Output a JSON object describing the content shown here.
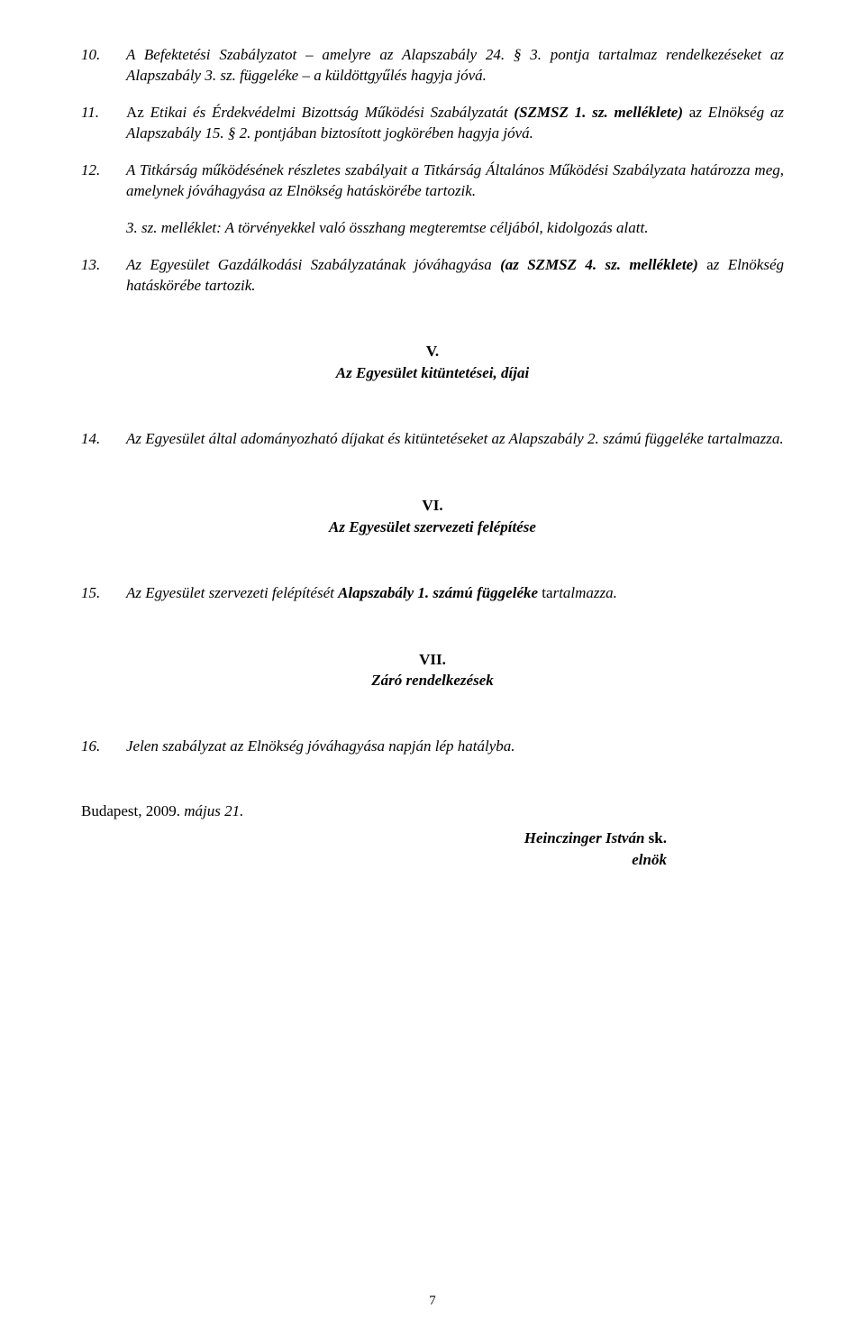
{
  "paragraphs": {
    "p10": {
      "num": "10.",
      "parts": [
        {
          "t": "A ",
          "i": true
        },
        {
          "t": "Befektetési Szabályzatot",
          "i": true
        },
        {
          "t": " – amelyre az Alapszabály 24. § 3. pontja tartalmaz rendelkezéseket az Alapszabály 3. sz. függeléke – a küldöttgyűlés hagyja jóvá.",
          "i": true
        }
      ]
    },
    "p11": {
      "num": "11.",
      "parts": [
        {
          "t": "Az ",
          "i": false
        },
        {
          "t": "Etikai és Érdekvédelmi Bizottság Működési Szabályzatát ",
          "i": true
        },
        {
          "t": "(SZMSZ 1. sz. melléklete) ",
          "b": true,
          "i": true
        },
        {
          "t": "a",
          "i": false
        },
        {
          "t": "z Elnökség az Alapszabály 15. § 2. pontjában biztosított jogkörében hagyja jóvá.",
          "i": true
        }
      ]
    },
    "p12": {
      "num": "12.",
      "parts": [
        {
          "t": "A Titkárság működésének részletes szabályait a Titkárság Általános Működési Szabályzata határozza meg, amelynek jóváhagyása az Elnökség hatáskörébe tartozik.",
          "i": true
        }
      ]
    },
    "p12sub": {
      "parts": [
        {
          "t": "3. sz. melléklet: A törvényekkel való összhang megteremtse céljából, kidolgozás alatt.",
          "i": true
        }
      ]
    },
    "p13": {
      "num": "13.",
      "parts": [
        {
          "t": "Az Egyesület Gazdálkodási Szabályzatának jóváhagyása ",
          "i": true
        },
        {
          "t": "(az SZMSZ 4. sz. melléklete) ",
          "b": true,
          "i": true
        },
        {
          "t": "a",
          "i": false
        },
        {
          "t": "z Elnökség hatáskörébe tartozik.",
          "i": true
        }
      ]
    },
    "p14": {
      "num": "14.",
      "parts": [
        {
          "t": "Az Egyesület által adományozható díjakat és kitüntetéseket az Alapszabály 2. számú függeléke tartalmazza.",
          "i": true
        }
      ]
    },
    "p15": {
      "num": "15.",
      "parts": [
        {
          "t": "Az Egyesület szervezeti felépítését ",
          "i": true
        },
        {
          "t": "Alapszabály 1. számú függeléke",
          "b": true,
          "i": true
        },
        {
          "t": " ta",
          "i": false
        },
        {
          "t": "rtalmazza.",
          "i": true
        }
      ]
    },
    "p16": {
      "num": "16.",
      "parts": [
        {
          "t": "Jelen szabályzat az Elnökség jóváhagyása napján lép hatályba.",
          "i": true
        }
      ]
    }
  },
  "sections": {
    "s5": {
      "num": "V.",
      "title": "Az Egyesület kitüntetései, díjai"
    },
    "s6": {
      "num": "VI.",
      "title": "Az Egyesület szervezeti felépítése"
    },
    "s7": {
      "num": "VII.",
      "title": "Záró rendelkezések"
    }
  },
  "closing": {
    "place_date_prefix": "Budapest, 2009. ",
    "place_date_italic": "május 21."
  },
  "signature": {
    "name": "Heinczinger István",
    "sk": " sk.",
    "role": "elnök"
  },
  "page_number": "7"
}
